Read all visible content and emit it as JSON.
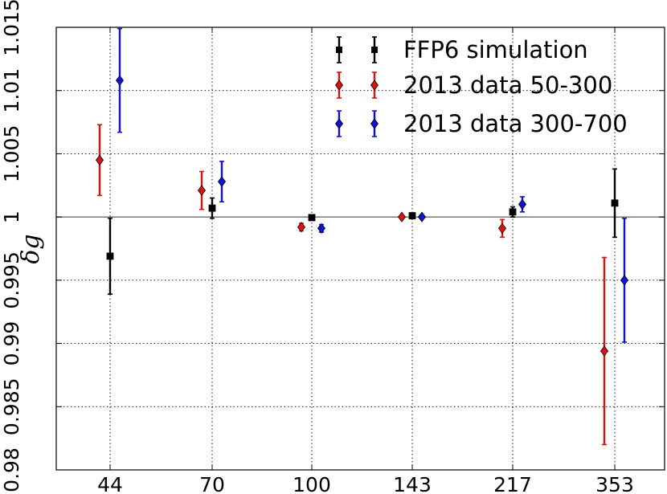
{
  "chart_data": {
    "type": "scatter",
    "title": "",
    "xlabel": "",
    "ylabel": "δg",
    "categories": [
      "44",
      "70",
      "100",
      "143",
      "217",
      "353"
    ],
    "ylim": [
      0.98,
      1.015
    ],
    "yticks": [
      0.98,
      0.985,
      0.99,
      0.995,
      1,
      1.005,
      1.01,
      1.015
    ],
    "ytick_labels": [
      "0.98",
      "0.985",
      "0.99",
      "0.995",
      "1",
      "1.005",
      "1.01",
      "1.015"
    ],
    "reference_line": 1,
    "grid": true,
    "legend_position": "top-right",
    "series": [
      {
        "name": "FFP6 simulation",
        "color": "#000000",
        "marker": "square",
        "values": [
          0.9969,
          1.0007,
          0.99995,
          1.0001,
          1.0004,
          1.0011
        ],
        "errors": [
          0.003,
          0.0008,
          0.0002,
          0.0001,
          0.0004,
          0.0027
        ]
      },
      {
        "name": "2013 data 50-300",
        "color": "#e01010",
        "marker": "diamond",
        "values": [
          1.0045,
          1.0021,
          0.9992,
          1.0,
          0.9991,
          0.9894
        ],
        "errors": [
          0.0028,
          0.0015,
          0.0003,
          0.0,
          0.0007,
          0.0074
        ]
      },
      {
        "name": "2013 data 300-700",
        "color": "#1010d8",
        "marker": "diamond",
        "values": [
          null,
          1.0028,
          0.9991,
          1.0,
          1.001,
          0.995
        ],
        "errors": [
          null,
          0.0016,
          0.0003,
          0.0,
          0.0006,
          0.0049
        ]
      }
    ],
    "extra_points": [
      {
        "series": "2013 data 300-700",
        "category": "44",
        "value": 1.0108,
        "error": 0.0041
      }
    ]
  }
}
